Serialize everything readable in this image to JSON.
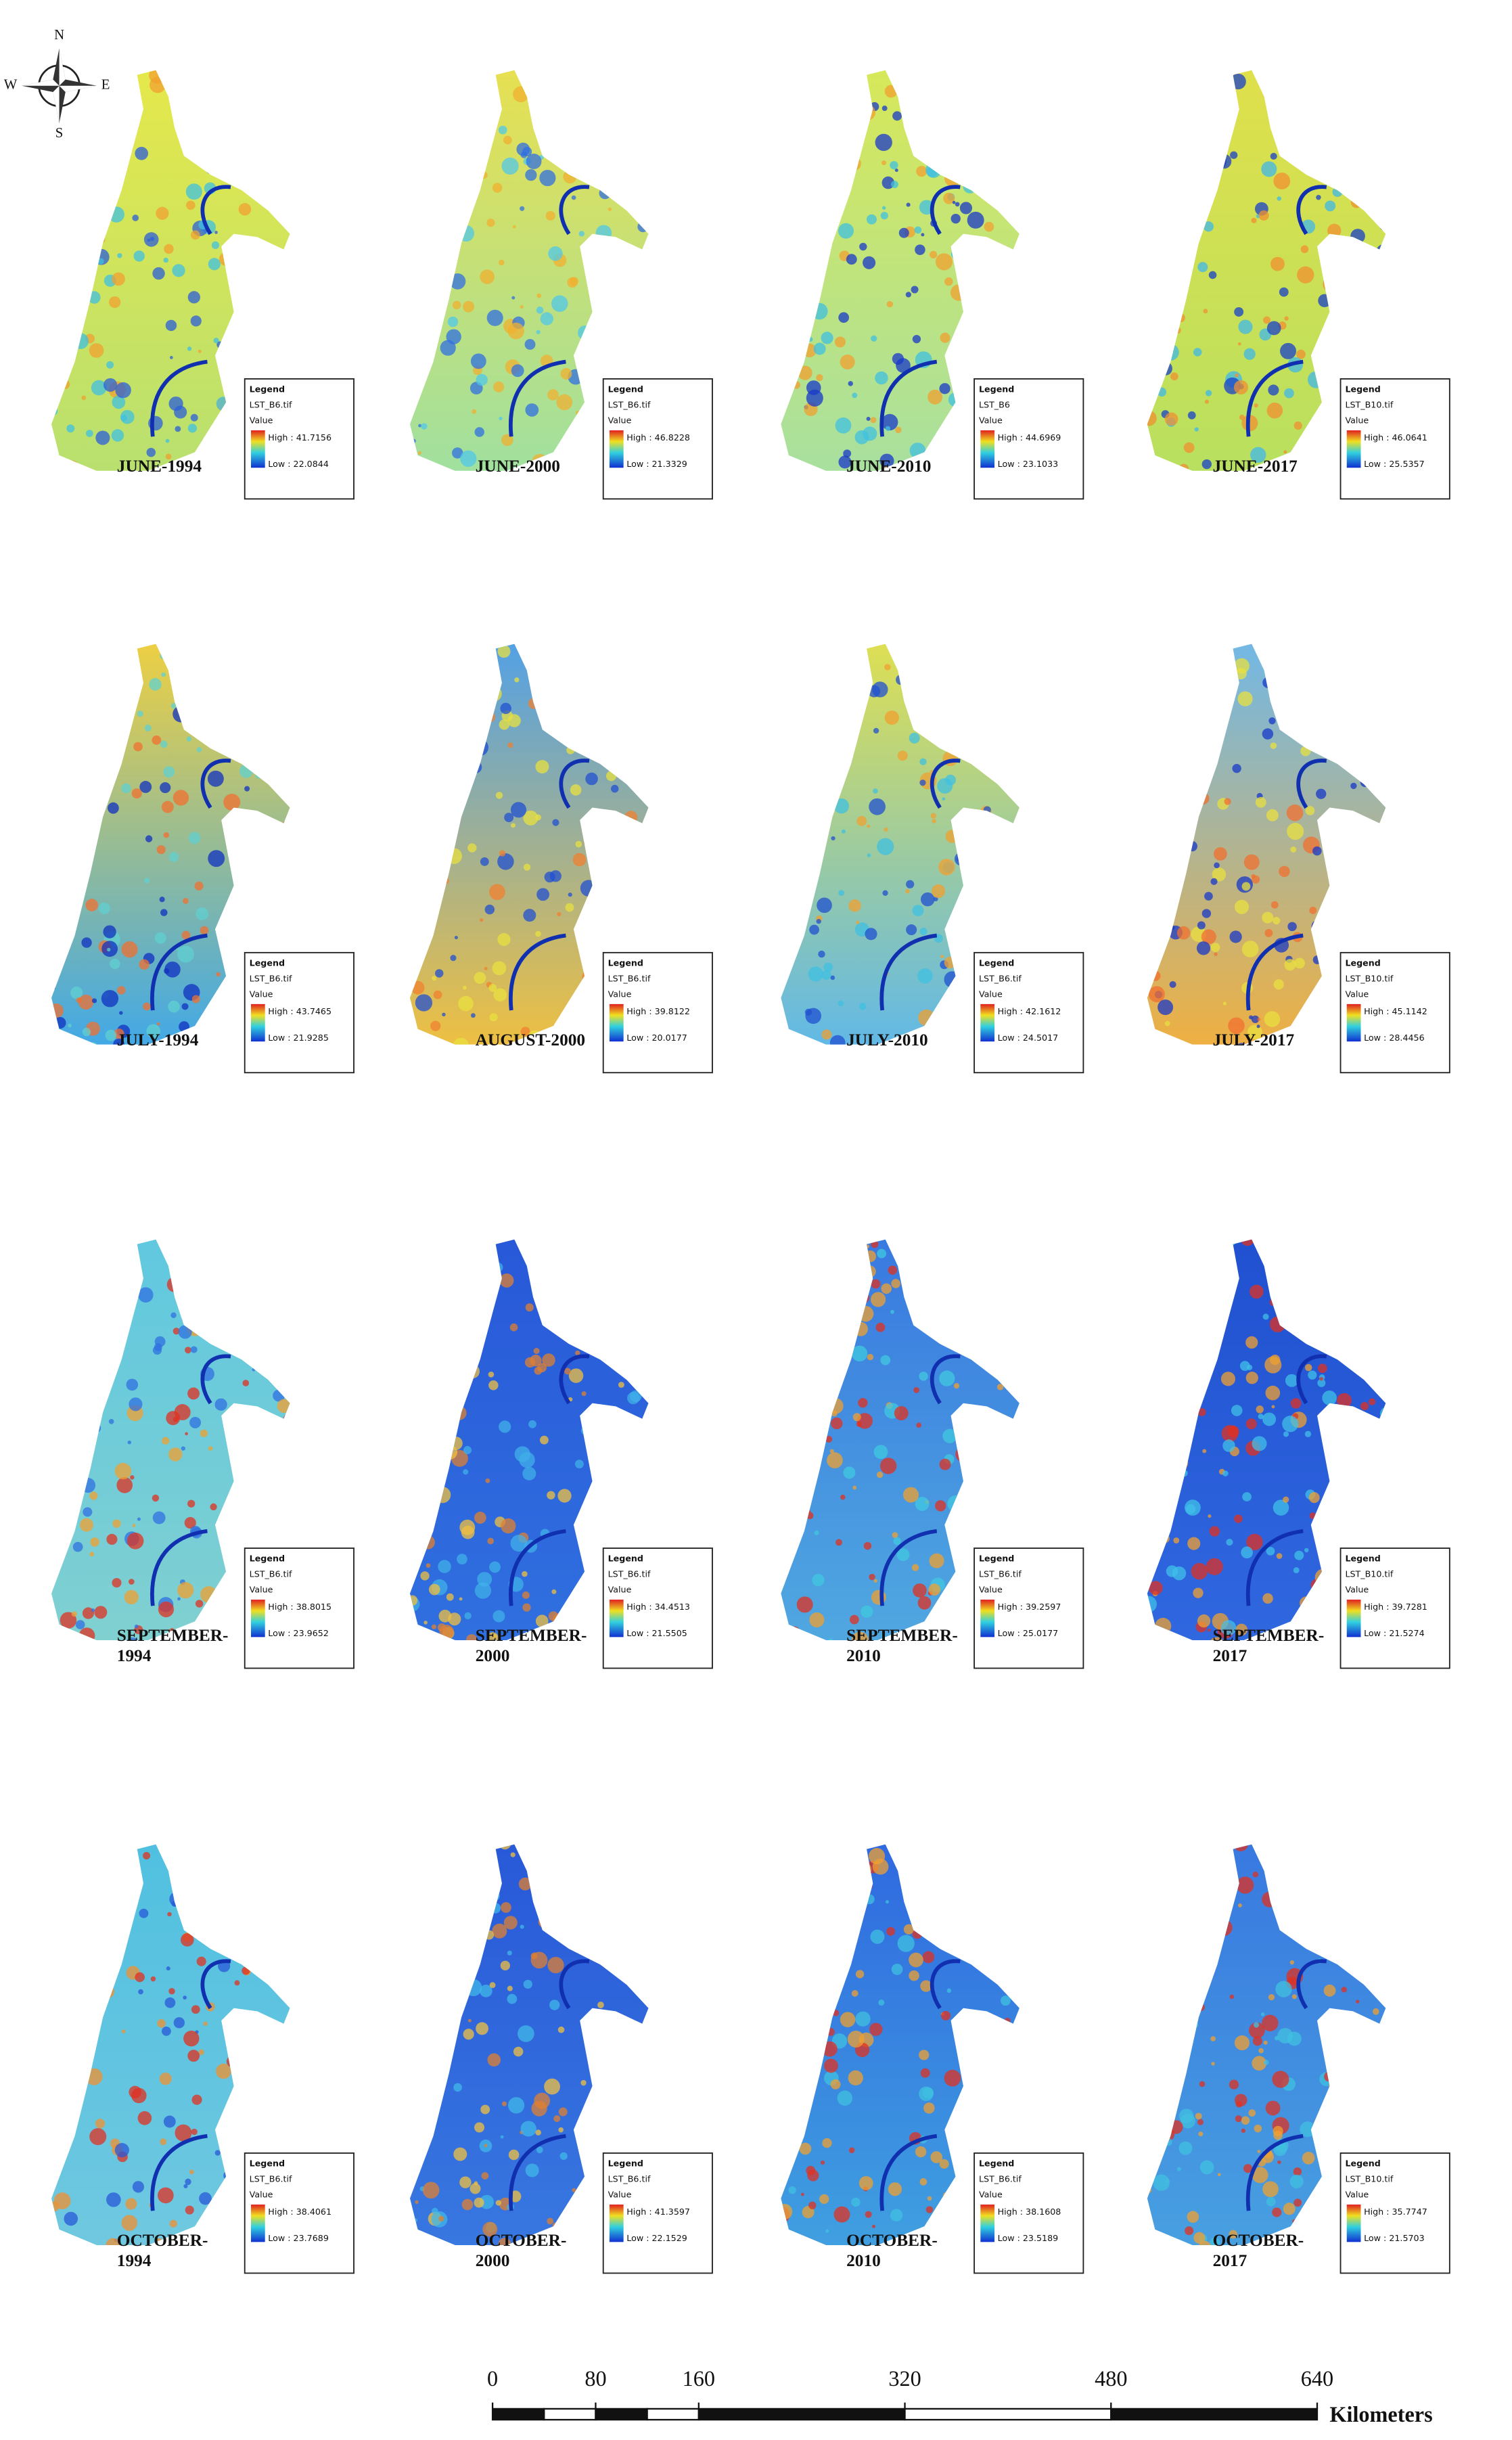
{
  "compass": {
    "n": "N",
    "s": "S",
    "e": "E",
    "w": "W"
  },
  "legend_heading": "Legend",
  "value_heading": "Value",
  "panels": [
    {
      "label": [
        "JUNE-1994"
      ],
      "file": "LST_B6.tif",
      "high": "High : 41.7156",
      "low": "Low : 22.0844"
    },
    {
      "label": [
        "JUNE-2000"
      ],
      "file": "LST_B6.tif",
      "high": "High : 46.8228",
      "low": "Low : 21.3329"
    },
    {
      "label": [
        "JUNE-2010"
      ],
      "file": "LST_B6",
      "high": "High : 44.6969",
      "low": "Low : 23.1033"
    },
    {
      "label": [
        "JUNE-2017"
      ],
      "file": "LST_B10.tif",
      "high": "High : 46.0641",
      "low": "Low : 25.5357"
    },
    {
      "label": [
        "JULY-1994"
      ],
      "file": "LST_B6.tif",
      "high": "High : 43.7465",
      "low": "Low : 21.9285"
    },
    {
      "label": [
        "AUGUST-2000"
      ],
      "file": "LST_B6.tif",
      "high": "High : 39.8122",
      "low": "Low : 20.0177"
    },
    {
      "label": [
        "JULY-2010"
      ],
      "file": "LST_B6.tif",
      "high": "High : 42.1612",
      "low": "Low : 24.5017"
    },
    {
      "label": [
        "JULY-2017"
      ],
      "file": "LST_B10.tif",
      "high": "High : 45.1142",
      "low": "Low : 28.4456"
    },
    {
      "label": [
        "SEPTEMBER-",
        "1994"
      ],
      "file": "LST_B6.tif",
      "high": "High : 38.8015",
      "low": "Low : 23.9652"
    },
    {
      "label": [
        "SEPTEMBER-",
        "2000"
      ],
      "file": "LST_B6.tif",
      "high": "High : 34.4513",
      "low": "Low : 21.5505"
    },
    {
      "label": [
        "SEPTEMBER-",
        "2010"
      ],
      "file": "LST_B6.tif",
      "high": "High : 39.2597",
      "low": "Low : 25.0177"
    },
    {
      "label": [
        "SEPTEMBER-",
        "2017"
      ],
      "file": "LST_B10.tif",
      "high": "High : 39.7281",
      "low": "Low : 21.5274"
    },
    {
      "label": [
        "OCTOBER-",
        "1994"
      ],
      "file": "LST_B6.tif",
      "high": "High : 38.4061",
      "low": "Low : 23.7689"
    },
    {
      "label": [
        "OCTOBER-",
        "2000"
      ],
      "file": "LST_B6.tif",
      "high": "High : 41.3597",
      "low": "Low : 22.1529"
    },
    {
      "label": [
        "OCTOBER-",
        "2010"
      ],
      "file": "LST_B6.tif",
      "high": "High : 38.1608",
      "low": "Low : 23.5189"
    },
    {
      "label": [
        "OCTOBER-",
        "2017"
      ],
      "file": "LST_B10.tif",
      "high": "High : 35.7747",
      "low": "Low : 21.5703"
    }
  ],
  "scale_bar": {
    "ticks": [
      0,
      80,
      160,
      320,
      480,
      640
    ],
    "unit": "Kilometers"
  }
}
